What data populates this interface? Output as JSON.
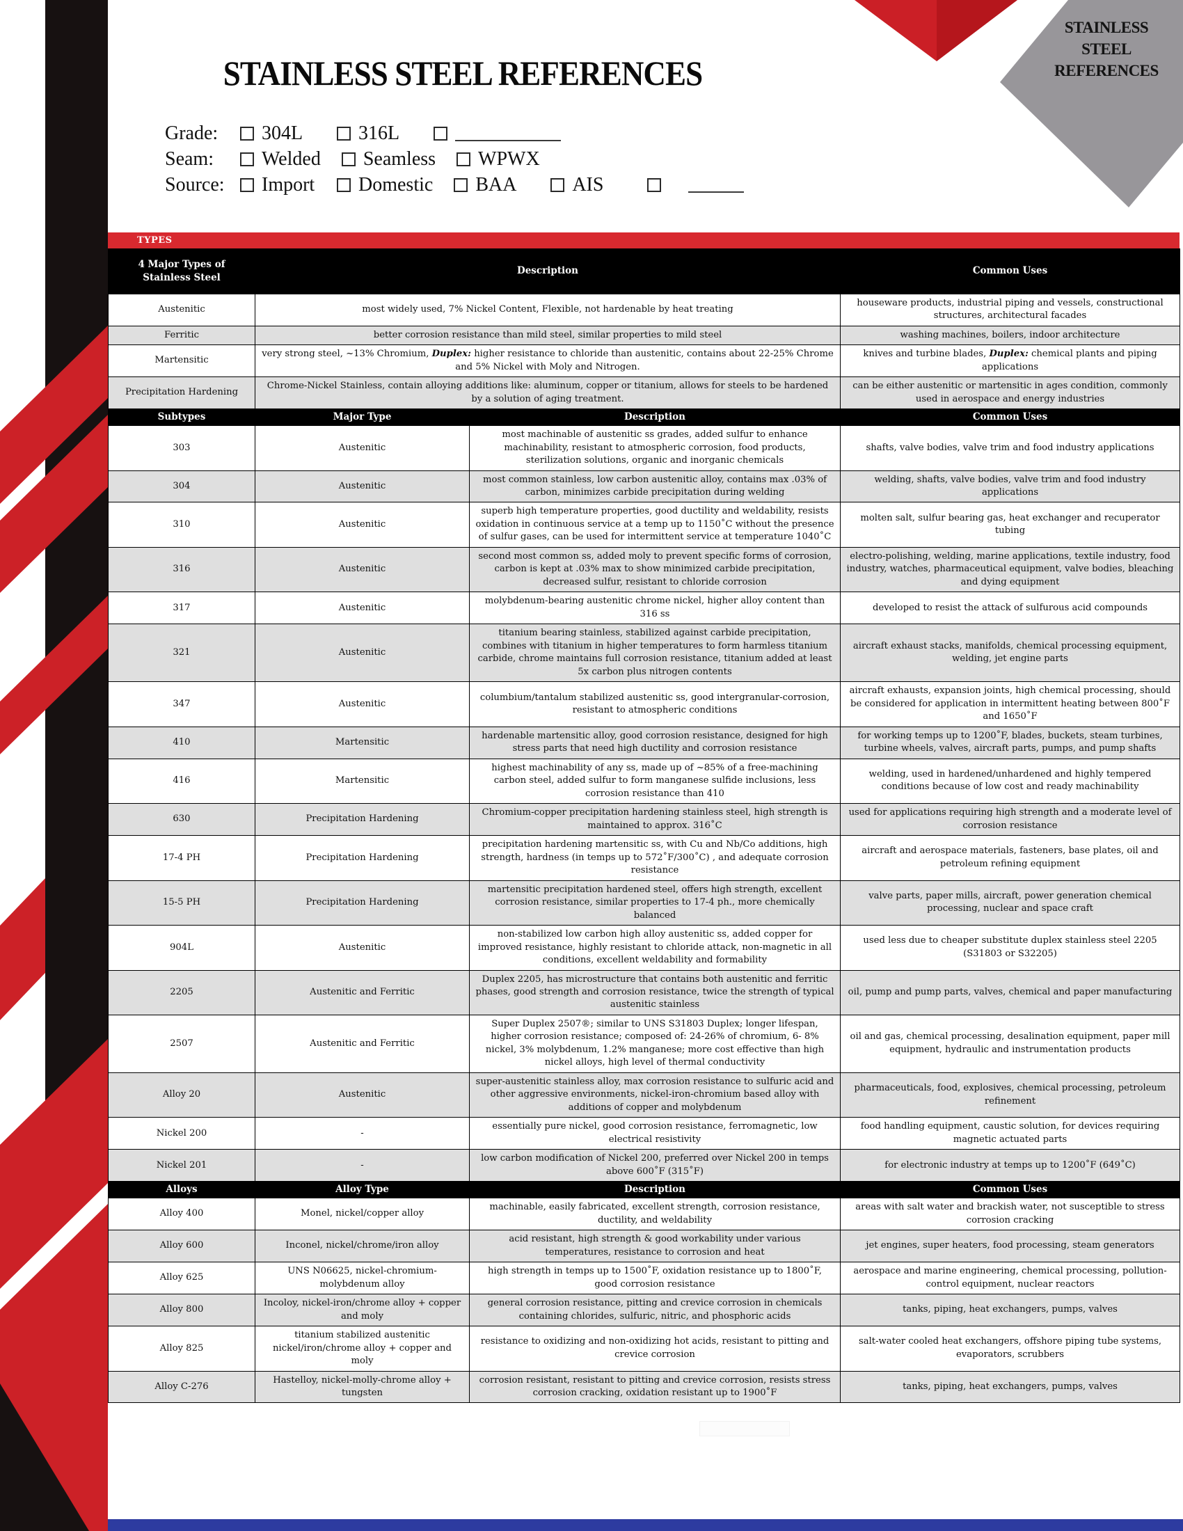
{
  "badge": {
    "text": "STAINLESS\nSTEEL\nREFERENCES"
  },
  "header": {
    "title": "STAINLESS STEEL REFERENCES"
  },
  "types_band": "TYPES",
  "colors": {
    "accent_red": "#cc2127",
    "band_red": "#d8292f",
    "header_black": "#000000",
    "stripe_gray": "#dfdfdf",
    "diamond_gray": "#98969a",
    "footer_blue": "#2d3ba0"
  },
  "form": {
    "rows": [
      {
        "label": "Grade:",
        "options": [
          {
            "text": "304L"
          },
          {
            "text": "316L"
          },
          {
            "text": "",
            "blank": true
          }
        ]
      },
      {
        "label": "Seam:",
        "options": [
          {
            "text": "Welded"
          },
          {
            "text": "Seamless"
          },
          {
            "text": "WPWX"
          }
        ]
      },
      {
        "label": "Source:",
        "options": [
          {
            "text": "Import"
          },
          {
            "text": "Domestic"
          },
          {
            "text": "BAA"
          },
          {
            "text": "AIS"
          },
          {
            "text": "",
            "blank": true
          }
        ]
      }
    ]
  },
  "table": {
    "sections": [
      {
        "id": "major",
        "merge_desc": true,
        "headers": [
          "4 Major Types of Stainless Steel",
          "Description",
          "Common Uses"
        ],
        "rows": [
          {
            "cols": [
              "Austenitic",
              "most widely used, 7% Nickel Content, Flexible, not hardenable by heat treating",
              "houseware products, industrial piping and vessels, constructional structures, architectural facades"
            ]
          },
          {
            "cols": [
              "Ferritic",
              "better corrosion resistance than mild steel, similar properties to mild steel",
              "washing machines, boilers, indoor architecture"
            ]
          },
          {
            "cols": [
              "Martensitic",
              [
                {
                  "t": "very strong steel, ~13% Chromium, "
                },
                {
                  "t": "Duplex:",
                  "b": true
                },
                {
                  "t": " higher resistance to chloride than austenitic, contains about 22-25% Chrome and 5% Nickel with Moly and Nitrogen."
                }
              ],
              [
                {
                  "t": "knives and turbine blades, "
                },
                {
                  "t": "Duplex:",
                  "b": true
                },
                {
                  "t": " chemical plants and piping applications"
                }
              ]
            ]
          },
          {
            "cols": [
              "Precipitation Hardening",
              "Chrome-Nickel Stainless, contain alloying additions like: aluminum, copper or titanium, allows for steels to  be hardened by a solution of aging treatment.",
              "can be either austenitic or martensitic in ages condition, commonly used in aerospace and energy industries"
            ]
          }
        ]
      },
      {
        "id": "subtypes",
        "headers": [
          "Subtypes",
          "Major Type",
          "Description",
          "Common Uses"
        ],
        "rows": [
          {
            "cols": [
              "303",
              "Austenitic",
              "most machinable of austenitic ss grades, added sulfur to enhance machinability, resistant to atmospheric corrosion, food products, sterilization solutions, organic and inorganic chemicals",
              "shafts, valve bodies, valve trim and food industry applications"
            ]
          },
          {
            "cols": [
              "304",
              "Austenitic",
              "most common stainless, low carbon austenitic alloy, contains max .03% of carbon, minimizes carbide precipitation during welding",
              "welding, shafts, valve bodies, valve trim and food industry applications"
            ]
          },
          {
            "cols": [
              "310",
              "Austenitic",
              "superb high temperature properties, good ductility and weldability, resists oxidation in continuous service at a temp up to 1150˚C  without the presence of sulfur gases, can be used for intermittent  service at temperature 1040˚C",
              "molten salt, sulfur bearing gas, heat exchanger and recuperator tubing"
            ]
          },
          {
            "cols": [
              "316",
              "Austenitic",
              "second most common ss, added moly to prevent specific forms of corrosion, carbon is kept at .03% max to show minimized carbide precipitation, decreased sulfur, resistant to chloride corrosion",
              "electro-polishing, welding, marine applications, textile  industry, food industry, watches, pharmaceutical equipment, valve bodies, bleaching and dying equipment"
            ]
          },
          {
            "cols": [
              "317",
              "Austenitic",
              "molybdenum-bearing austenitic chrome nickel, higher alloy content than 316 ss",
              "developed to resist the attack of sulfurous acid compounds"
            ]
          },
          {
            "cols": [
              "321",
              "Austenitic",
              "titanium bearing stainless, stabilized against carbide precipitation, combines with titanium in higher temperatures to form harmless titanium carbide, chrome maintains full corrosion resistance,  titanium added at least 5x carbon plus nitrogen contents",
              "aircraft exhaust stacks, manifolds, chemical processing equipment, welding, jet engine parts"
            ]
          },
          {
            "cols": [
              "347",
              "Austenitic",
              "columbium/tantalum stabilized austenitic ss, good intergranular-corrosion, resistant to atmospheric conditions",
              "aircraft exhausts, expansion joints, high chemical processing, should be considered for application in intermittent heating between 800˚F and 1650˚F"
            ]
          },
          {
            "cols": [
              "410",
              "Martensitic",
              "hardenable martensitic alloy, good corrosion resistance, designed  for high stress parts that need high ductility and corrosion resistance",
              "for working temps up to 1200˚F, blades, buckets, steam turbines, turbine wheels, valves, aircraft parts, pumps, and pump shafts"
            ]
          },
          {
            "cols": [
              "416",
              "Martensitic",
              "highest machinability of any ss, made up of ~85% of a free-machining carbon steel, added sulfur to form manganese sulfide inclusions, less corrosion resistance than 410",
              "welding, used in hardened/unhardened and highly tempered conditions because of  low cost and ready machinability"
            ]
          },
          {
            "cols": [
              "630",
              "Precipitation Hardening",
              "Chromium-copper precipitation hardening stainless steel, high strength is maintained to approx. 316˚C",
              "used for applications requiring high strength and a moderate level of corrosion resistance"
            ]
          },
          {
            "cols": [
              "17-4 PH",
              "Precipitation Hardening",
              "precipitation hardening martensitic ss, with Cu and Nb/Co additions, high strength, hardness (in temps up to 572˚F/300˚C) , and adequate corrosion resistance",
              "aircraft and aerospace materials, fasteners, base plates, oil  and petroleum refining equipment"
            ]
          },
          {
            "cols": [
              "15-5 PH",
              "Precipitation Hardening",
              "martensitic precipitation hardened steel, offers high strength, excellent corrosion resistance, similar properties to 17-4 ph., more chemically balanced",
              "valve parts, paper mills, aircraft, power generation chemical processing, nuclear and space craft"
            ]
          },
          {
            "cols": [
              "904L",
              "Austenitic",
              "non-stabilized low carbon high alloy austenitic ss, added copper for improved resistance, highly resistant to chloride attack, non-magnetic in all conditions, excellent weldability and formability",
              "used less due to cheaper substitute duplex stainless steel  2205 (S31803 or S32205)"
            ]
          },
          {
            "cols": [
              "2205",
              "Austenitic and Ferritic",
              "Duplex 2205, has microstructure that contains both austenitic and ferritic phases, good strength and corrosion resistance, twice the strength of typical austenitic stainless",
              "oil, pump and pump parts, valves, chemical and paper manufacturing"
            ]
          },
          {
            "cols": [
              "2507",
              "Austenitic and Ferritic",
              "Super Duplex 2507®; similar to UNS S31803 Duplex; longer lifespan, higher corrosion resistance; composed of: 24-26% of chromium, 6-  8% nickel, 3% molybdenum, 1.2% manganese; more cost effective  than high nickel alloys, high level of thermal conductivity",
              "oil and gas, chemical processing, desalination equipment, paper mill equipment, hydraulic and instrumentation products"
            ]
          },
          {
            "cols": [
              "Alloy 20",
              "Austenitic",
              "super-austenitic stainless alloy, max corrosion resistance to sulfuric  acid and other aggressive environments, nickel-iron-chromium based alloy with additions of copper and molybdenum",
              "pharmaceuticals, food, explosives, chemical processing, petroleum refinement"
            ]
          },
          {
            "cols": [
              "Nickel 200",
              "-",
              "essentially pure nickel, good corrosion resistance, ferromagnetic, low electrical resistivity",
              "food handling equipment, caustic solution, for devices requiring magnetic actuated parts"
            ]
          },
          {
            "cols": [
              "Nickel 201",
              "-",
              "low carbon modification of Nickel 200, preferred over Nickel 200 in temps above 600˚F (315˚F)",
              "for electronic industry at temps up to 1200˚F (649˚C)"
            ]
          }
        ]
      },
      {
        "id": "alloys",
        "headers": [
          "Alloys",
          "Alloy Type",
          "Description",
          "Common Uses"
        ],
        "rows": [
          {
            "cols": [
              "Alloy 400",
              "Monel, nickel/copper alloy",
              "machinable, easily fabricated, excellent  strength, corrosion resistance, ductility, and weldability",
              "areas with salt water and brackish water, not susceptible to stress corrosion cracking"
            ]
          },
          {
            "cols": [
              "Alloy 600",
              "Inconel, nickel/chrome/iron alloy",
              "acid resistant, high strength & good workability under various temperatures, resistance to corrosion and heat",
              "jet engines, super heaters, food processing, steam generators"
            ]
          },
          {
            "cols": [
              "Alloy 625",
              "UNS N06625, nickel-chromium-molybdenum alloy",
              "high strength in temps up to 1500˚F, oxidation resistance up to 1800˚F, good corrosion resistance",
              "aerospace and marine engineering, chemical processing, pollution-control equipment, nuclear reactors"
            ]
          },
          {
            "cols": [
              "Alloy 800",
              "Incoloy, nickel-iron/chrome alloy + copper and moly",
              "general corrosion resistance, pitting and crevice corrosion in chemicals containing chlorides, sulfuric, nitric, and phosphoric acids",
              "tanks, piping, heat exchangers, pumps, valves"
            ]
          },
          {
            "cols": [
              "Alloy 825",
              "titanium stabilized austenitic nickel/iron/chrome alloy + copper and moly",
              "resistance to oxidizing and non-oxidizing hot acids, resistant to pitting and crevice corrosion",
              "salt-water cooled heat exchangers, offshore piping tube systems, evaporators, scrubbers"
            ]
          },
          {
            "cols": [
              "Alloy C-276",
              "Hastelloy, nickel-molly-chrome alloy + tungsten",
              "corrosion resistant, resistant to pitting and crevice corrosion, resists stress corrosion cracking, oxidation resistant up to 1900˚F",
              "tanks, piping, heat exchangers, pumps, valves"
            ]
          }
        ]
      }
    ]
  }
}
